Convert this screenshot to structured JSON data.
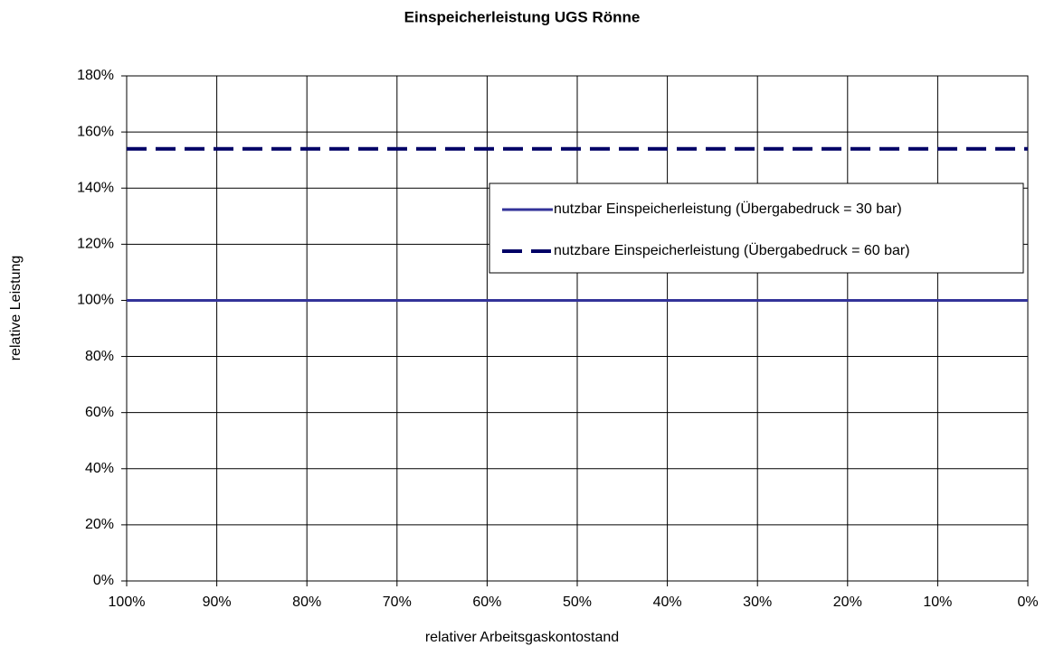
{
  "chart_data": {
    "type": "line",
    "title": "Einspeicherleistung UGS Rönne",
    "xlabel": "relativer Arbeitsgaskontostand",
    "ylabel": "relative Leistung",
    "x": [
      100,
      90,
      80,
      70,
      60,
      50,
      40,
      30,
      20,
      10,
      0
    ],
    "series": [
      {
        "name": "nutzbar Einspeicherleistung  (Übergabedruck = 30 bar)",
        "color": "#333399",
        "style": "solid",
        "values": [
          100,
          100,
          100,
          100,
          100,
          100,
          100,
          100,
          100,
          100,
          100
        ]
      },
      {
        "name": "nutzbare Einspeicherleistung  (Übergabedruck = 60 bar)",
        "color": "#000066",
        "style": "dashed",
        "values": [
          154,
          154,
          154,
          154,
          154,
          154,
          154,
          154,
          154,
          154,
          154
        ]
      }
    ],
    "xlim": [
      100,
      0
    ],
    "xticks": [
      {
        "value": 100,
        "label": "100%"
      },
      {
        "value": 90,
        "label": "90%"
      },
      {
        "value": 80,
        "label": "80%"
      },
      {
        "value": 70,
        "label": "70%"
      },
      {
        "value": 60,
        "label": "60%"
      },
      {
        "value": 50,
        "label": "50%"
      },
      {
        "value": 40,
        "label": "40%"
      },
      {
        "value": 30,
        "label": "30%"
      },
      {
        "value": 20,
        "label": "20%"
      },
      {
        "value": 10,
        "label": "10%"
      },
      {
        "value": 0,
        "label": "0%"
      }
    ],
    "ylim": [
      0,
      180
    ],
    "yticks": [
      {
        "value": 0,
        "label": "0%"
      },
      {
        "value": 20,
        "label": "20%"
      },
      {
        "value": 40,
        "label": "40%"
      },
      {
        "value": 60,
        "label": "60%"
      },
      {
        "value": 80,
        "label": "80%"
      },
      {
        "value": 100,
        "label": "100%"
      },
      {
        "value": 120,
        "label": "120%"
      },
      {
        "value": 140,
        "label": "140%"
      },
      {
        "value": 160,
        "label": "160%"
      },
      {
        "value": 180,
        "label": "180%"
      }
    ],
    "grid": true,
    "legend": "right"
  }
}
